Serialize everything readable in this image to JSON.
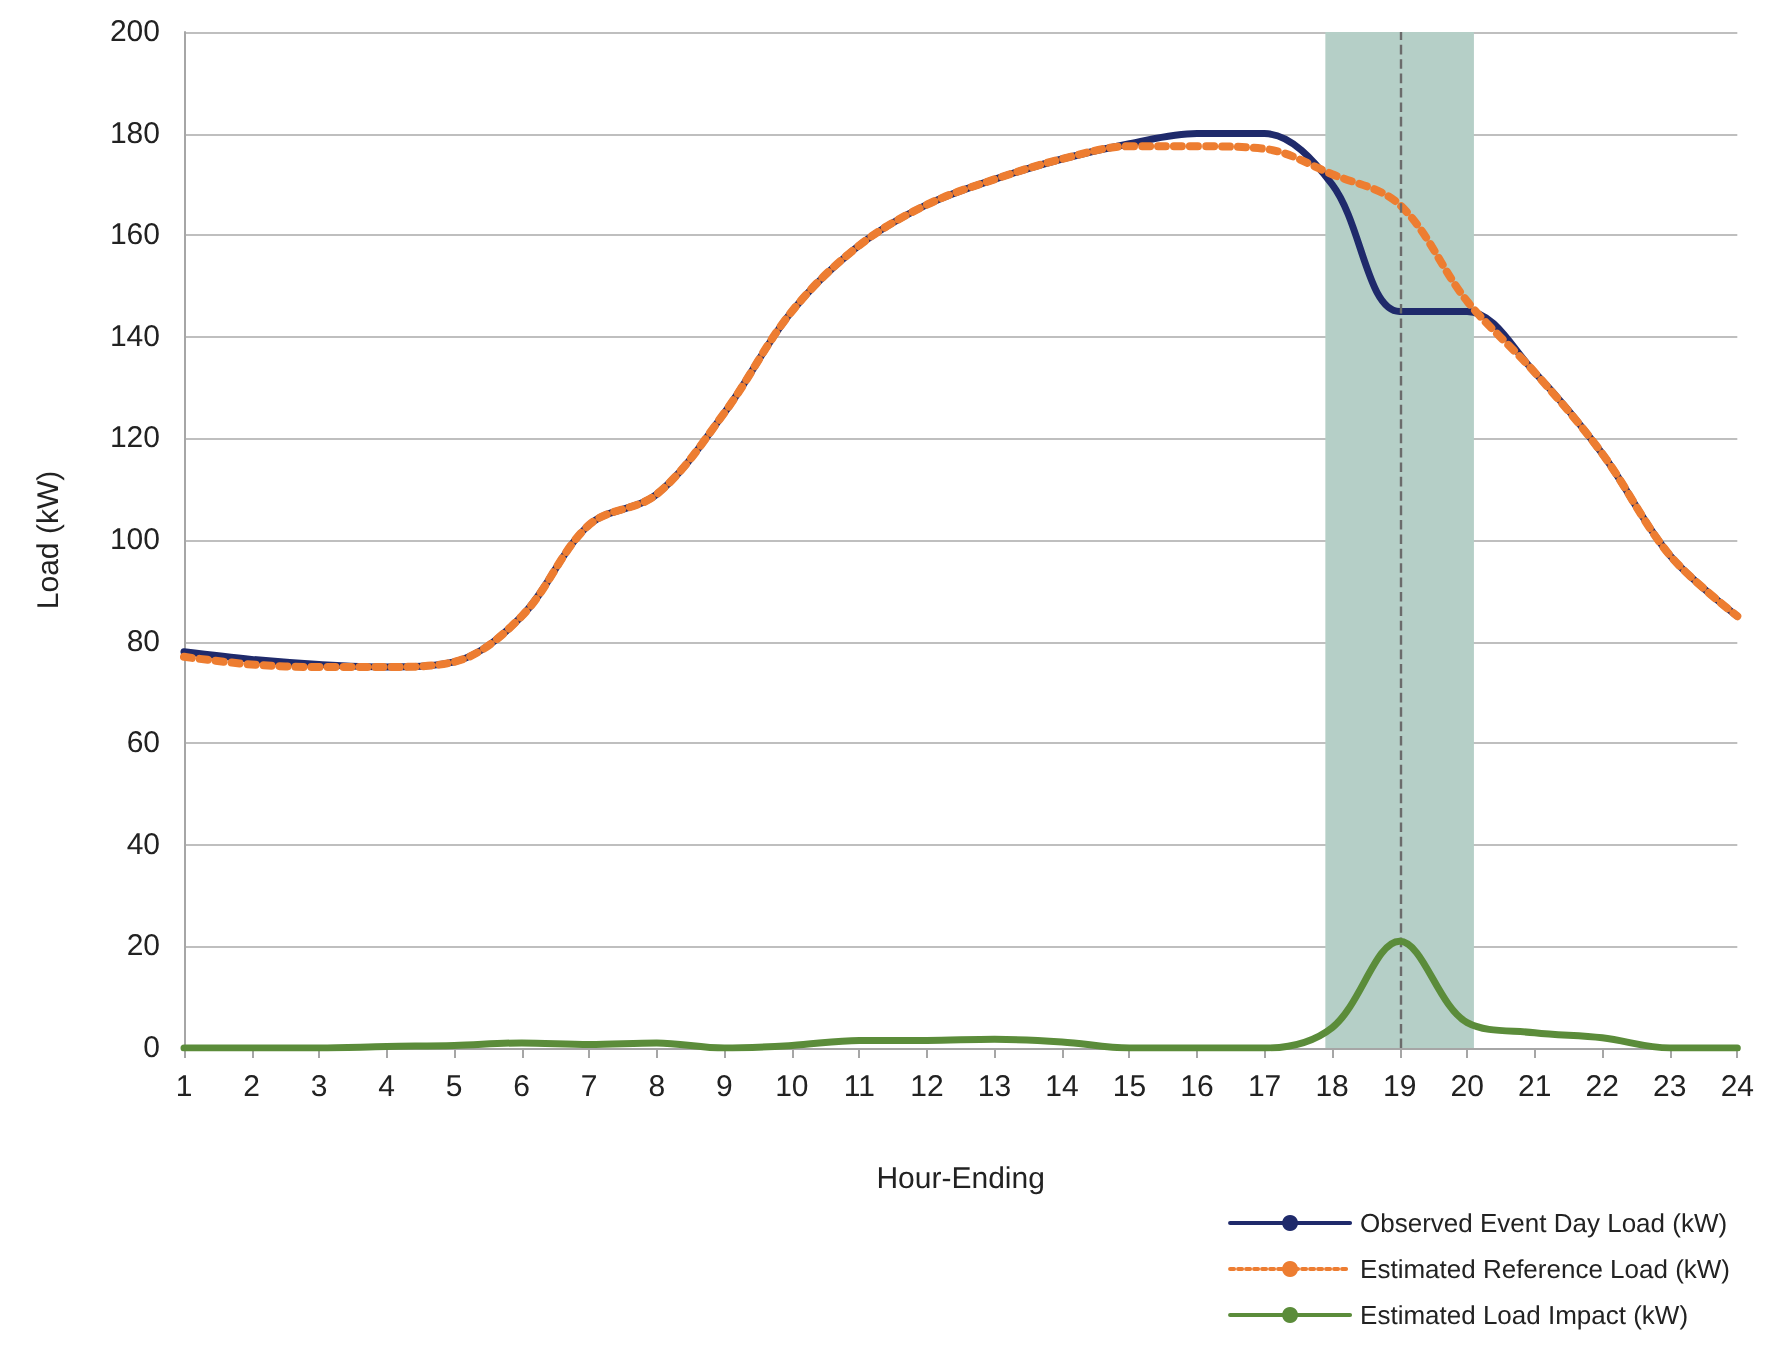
{
  "chart_data": {
    "type": "line",
    "xlabel": "Hour-Ending",
    "ylabel": "Load (kW)",
    "x": [
      1,
      2,
      3,
      4,
      5,
      6,
      7,
      8,
      9,
      10,
      11,
      12,
      13,
      14,
      15,
      16,
      17,
      18,
      19,
      20,
      21,
      22,
      23,
      24
    ],
    "series": [
      {
        "name": "Observed Event Day Load (kW)",
        "color": "#1f2a6b",
        "line_style": "solid",
        "values": [
          78,
          76.5,
          75.5,
          75,
          76,
          85,
          103,
          109,
          125,
          145,
          158,
          166,
          171,
          175,
          178,
          180,
          180,
          170,
          145,
          145,
          133,
          117,
          97,
          85
        ]
      },
      {
        "name": "Estimated Reference Load (kW)",
        "color": "#ed7d31",
        "line_style": "dotted",
        "values": [
          77,
          75.5,
          75,
          75,
          76,
          85,
          103,
          109,
          125,
          145,
          158,
          166,
          171,
          175,
          177.5,
          177.5,
          177,
          172,
          166,
          147,
          133,
          117,
          97,
          85
        ]
      },
      {
        "name": "Estimated Load Impact (kW)",
        "color": "#5b8c3a",
        "line_style": "solid",
        "values": [
          0,
          0,
          0,
          0.3,
          0.5,
          1,
          0.7,
          1,
          0,
          0.5,
          1.5,
          1.5,
          1.7,
          1.2,
          0,
          0,
          0,
          4,
          21,
          5,
          3,
          2,
          0,
          0
        ]
      }
    ],
    "xlim": [
      1,
      24
    ],
    "xticks": [
      1,
      2,
      3,
      4,
      5,
      6,
      7,
      8,
      9,
      10,
      11,
      12,
      13,
      14,
      15,
      16,
      17,
      18,
      19,
      20,
      21,
      22,
      23,
      24
    ],
    "ylim": [
      0,
      200
    ],
    "yticks": [
      0,
      20,
      40,
      60,
      80,
      100,
      120,
      140,
      160,
      180,
      200
    ],
    "grid": "y",
    "legend": "bottom right",
    "marker": "none",
    "bands": [
      {
        "axis": "x",
        "from": 17.9,
        "to": 20.1,
        "color": "#b5cfc7"
      }
    ],
    "ref_lines": [
      {
        "axis": "x",
        "value": 19,
        "color": "#6b6b6b",
        "line_style": "dashed"
      }
    ]
  }
}
